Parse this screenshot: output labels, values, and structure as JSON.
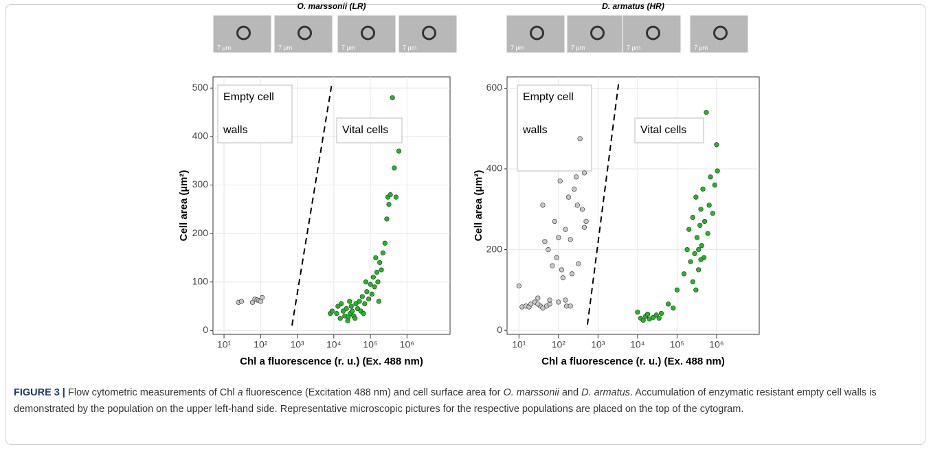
{
  "chart_data": [
    {
      "type": "scatter",
      "title": "O. marssonii (LR)",
      "x_label": "Chl a fluorescence (r. u.) (Ex. 488 nm)",
      "y_label": "Cell area (µm²)",
      "log_x": true,
      "grid": true,
      "xlim": [
        5,
        15000000
      ],
      "ylim": [
        -8,
        523
      ],
      "xticks": [
        {
          "value": 10,
          "label": "10¹"
        },
        {
          "value": 100,
          "label": "10²"
        },
        {
          "value": 1000,
          "label": "10³"
        },
        {
          "value": 10000,
          "label": "10⁴"
        },
        {
          "value": 100000,
          "label": "10⁵"
        },
        {
          "value": 1000000,
          "label": "10⁶"
        }
      ],
      "yticks": [
        0,
        100,
        200,
        300,
        400,
        500
      ],
      "image_scale_labels": [
        "7 µm",
        "7 µm",
        "7 µm",
        "7 µm"
      ],
      "annotations": [
        {
          "lines": [
            "Empty cell",
            "walls"
          ]
        },
        {
          "lines": [
            "Vital cells"
          ]
        }
      ],
      "threshold_line": {
        "x": [
          720,
          8800
        ],
        "y": [
          10,
          508
        ]
      },
      "series": [
        {
          "color": "#c8c8c8",
          "x": [
            25,
            30,
            60,
            70,
            80,
            90,
            100,
            110
          ],
          "values": [
            58,
            60,
            58,
            65,
            63,
            62,
            60,
            68
          ]
        },
        {
          "color": "#22b822",
          "x": [
            12000,
            15000,
            18000,
            20000,
            22000,
            25000,
            28000,
            30000,
            32000,
            35000,
            40000,
            45000,
            50000,
            55000,
            60000,
            70000,
            80000,
            90000,
            100000,
            110000,
            120000,
            130000,
            150000,
            160000,
            180000,
            200000,
            220000,
            250000,
            280000,
            300000,
            320000,
            350000,
            400000,
            450000,
            500000,
            600000,
            8000,
            9000,
            13000,
            16000,
            24000,
            27000,
            38000,
            65000,
            75000,
            140000,
            170000
          ],
          "values": [
            35,
            25,
            40,
            30,
            45,
            28,
            35,
            50,
            40,
            30,
            55,
            45,
            60,
            40,
            70,
            55,
            80,
            65,
            95,
            75,
            110,
            90,
            120,
            100,
            140,
            125,
            160,
            180,
            230,
            275,
            260,
            280,
            480,
            335,
            275,
            370,
            35,
            40,
            50,
            55,
            20,
            60,
            25,
            35,
            100,
            150,
            60
          ]
        }
      ]
    },
    {
      "type": "scatter",
      "title": "D. armatus (HR)",
      "x_label": "Chl a fluorescence (r. u.) (Ex. 488 nm)",
      "y_label": "Cell area (µm²)",
      "log_x": true,
      "grid": true,
      "xlim": [
        5,
        12000000
      ],
      "ylim": [
        -10,
        628
      ],
      "xticks": [
        {
          "value": 10,
          "label": "10¹"
        },
        {
          "value": 100,
          "label": "10²"
        },
        {
          "value": 1000,
          "label": "10³"
        },
        {
          "value": 10000,
          "label": "10⁴"
        },
        {
          "value": 100000,
          "label": "10⁵"
        },
        {
          "value": 1000000,
          "label": "10⁶"
        }
      ],
      "yticks": [
        0,
        200,
        400,
        600
      ],
      "image_scale_labels": [
        "7 µm",
        "7 µm",
        "7 µm",
        "7 µm"
      ],
      "annotations": [
        {
          "lines": [
            "Empty cell",
            "walls"
          ]
        },
        {
          "lines": [
            "Vital cells"
          ]
        }
      ],
      "threshold_line": {
        "x": [
          540,
          3300
        ],
        "y": [
          14,
          610
        ]
      },
      "series": [
        {
          "color": "#c8c8c8",
          "x": [
            10,
            12,
            15,
            18,
            20,
            25,
            30,
            35,
            40,
            45,
            50,
            55,
            60,
            70,
            80,
            90,
            100,
            110,
            120,
            130,
            150,
            160,
            180,
            200,
            220,
            250,
            280,
            300,
            320,
            350,
            400,
            450,
            500,
            450,
            100,
            150,
            200,
            60,
            30,
            40
          ],
          "values": [
            110,
            58,
            60,
            58,
            65,
            70,
            80,
            60,
            310,
            220,
            60,
            200,
            65,
            160,
            270,
            180,
            230,
            370,
            150,
            130,
            250,
            60,
            330,
            225,
            140,
            350,
            380,
            310,
            165,
            475,
            300,
            390,
            270,
            255,
            70,
            75,
            60,
            75,
            65,
            55
          ]
        },
        {
          "color": "#22b822",
          "x": [
            10000,
            12000,
            14000,
            16000,
            18000,
            20000,
            25000,
            30000,
            35000,
            40000,
            60000,
            80000,
            100000,
            150000,
            180000,
            200000,
            220000,
            250000,
            280000,
            300000,
            320000,
            350000,
            380000,
            400000,
            420000,
            450000,
            480000,
            500000,
            550000,
            600000,
            650000,
            700000,
            800000,
            900000,
            1000000,
            1050000,
            250000,
            300000,
            350000,
            400000
          ],
          "values": [
            45,
            30,
            25,
            35,
            40,
            28,
            32,
            38,
            30,
            42,
            65,
            55,
            100,
            140,
            200,
            250,
            170,
            280,
            190,
            330,
            230,
            150,
            260,
            300,
            210,
            350,
            180,
            270,
            540,
            240,
            310,
            380,
            290,
            360,
            460,
            395,
            120,
            100,
            200,
            175
          ]
        }
      ]
    }
  ],
  "caption": {
    "label": "FIGURE 3 |",
    "parts": [
      "Flow cytometric measurements of Chl ",
      "a",
      " fluorescence (Excitation 488 nm) and cell surface area for ",
      "O. marssonii",
      " and ",
      "D. armatus",
      ". Accumulation of enzymatic resistant empty cell walls is demonstrated by the population on the upper left-hand side. Representative microscopic pictures for the respective populations are placed on the top of the cytogram."
    ]
  }
}
